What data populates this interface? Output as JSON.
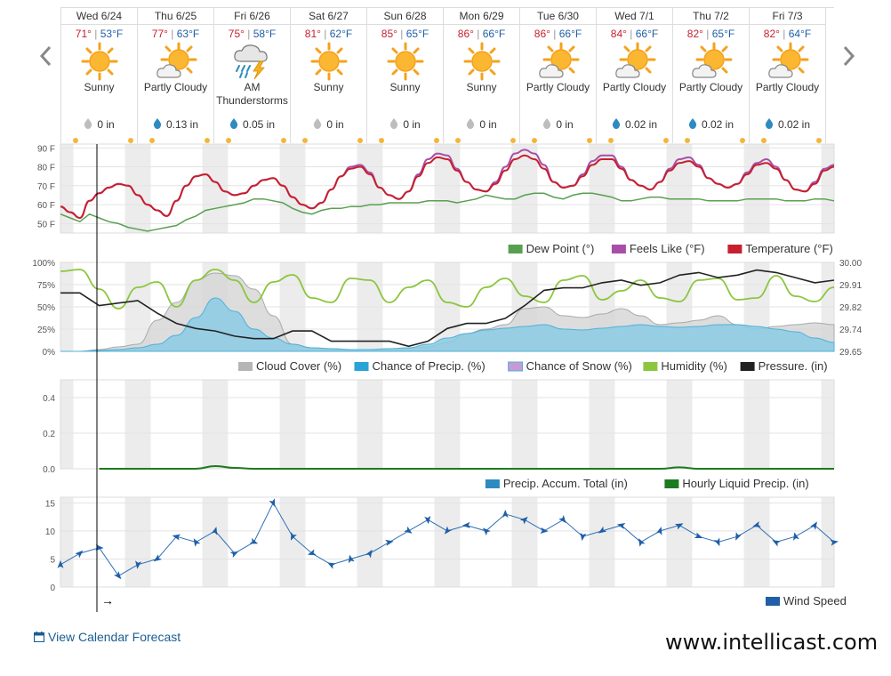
{
  "nav": {
    "prev_icon": "chevron-left-icon",
    "next_icon": "chevron-right-icon"
  },
  "days": [
    {
      "name": "Wed 6/24",
      "hi": "71°",
      "lo": "53°F",
      "icon": "sunny",
      "condition": "Sunny",
      "precip": "0 in",
      "drop": "grey"
    },
    {
      "name": "Thu 6/25",
      "hi": "77°",
      "lo": "63°F",
      "icon": "partly-cloudy",
      "condition": "Partly Cloudy",
      "precip": "0.13 in",
      "drop": "blue"
    },
    {
      "name": "Fri 6/26",
      "hi": "75°",
      "lo": "58°F",
      "icon": "thunderstorm",
      "condition": "AM Thunderstorms",
      "precip": "0.05 in",
      "drop": "blue"
    },
    {
      "name": "Sat 6/27",
      "hi": "81°",
      "lo": "62°F",
      "icon": "sunny",
      "condition": "Sunny",
      "precip": "0 in",
      "drop": "grey"
    },
    {
      "name": "Sun 6/28",
      "hi": "85°",
      "lo": "65°F",
      "icon": "sunny",
      "condition": "Sunny",
      "precip": "0 in",
      "drop": "grey"
    },
    {
      "name": "Mon 6/29",
      "hi": "86°",
      "lo": "66°F",
      "icon": "sunny",
      "condition": "Sunny",
      "precip": "0 in",
      "drop": "grey"
    },
    {
      "name": "Tue 6/30",
      "hi": "86°",
      "lo": "66°F",
      "icon": "partly-cloudy",
      "condition": "Partly Cloudy",
      "precip": "0 in",
      "drop": "grey"
    },
    {
      "name": "Wed 7/1",
      "hi": "84°",
      "lo": "66°F",
      "icon": "partly-cloudy",
      "condition": "Partly Cloudy",
      "precip": "0.02 in",
      "drop": "blue"
    },
    {
      "name": "Thu 7/2",
      "hi": "82°",
      "lo": "65°F",
      "icon": "partly-cloudy",
      "condition": "Partly Cloudy",
      "precip": "0.02 in",
      "drop": "blue"
    },
    {
      "name": "Fri 7/3",
      "hi": "82°",
      "lo": "64°F",
      "icon": "partly-cloudy",
      "condition": "Partly Cloudy",
      "precip": "0.02 in",
      "drop": "blue"
    }
  ],
  "colors": {
    "temperature": "#c6202e",
    "feels_like": "#a84ea8",
    "dew_point": "#58a050",
    "cloud": "#c8c8c8",
    "precip_chance": "#4fb1d8",
    "snow": "#c79ad6",
    "humidity": "#8cc63e",
    "pressure": "#222222",
    "accum": "#2e8bc0",
    "hourly_precip": "#1e7a1e",
    "wind": "#1f5fa8",
    "night_band": "#ececec",
    "grid": "#e3e3e3"
  },
  "chart_data": [
    {
      "type": "line",
      "panel": "temperature",
      "y_ticks": [
        "90 F",
        "80 F",
        "70 F",
        "60 F",
        "50 F"
      ],
      "ylim": [
        45,
        92
      ],
      "x": [
        0,
        3,
        6,
        9,
        12,
        15,
        18,
        21,
        24,
        27,
        30,
        33,
        36,
        39,
        42,
        45,
        48,
        51,
        54,
        57,
        60,
        63,
        66,
        69,
        72,
        75,
        78,
        81,
        84,
        87,
        90,
        93,
        96,
        99,
        102,
        105,
        108,
        111,
        114,
        117,
        120,
        123,
        126,
        129,
        132,
        135,
        138,
        141,
        144,
        147,
        150,
        153,
        156,
        159,
        162,
        165,
        168,
        171,
        174,
        177,
        180,
        183,
        186,
        189,
        192,
        195,
        198,
        201,
        204,
        207,
        210,
        213,
        216,
        219,
        222,
        225,
        228,
        231,
        234,
        237,
        240
      ],
      "series": [
        {
          "name": "Temperature (°F)",
          "values": [
            59,
            56,
            53,
            62,
            66,
            69,
            71,
            70,
            65,
            60,
            57,
            54,
            62,
            70,
            75,
            76,
            72,
            67,
            65,
            66,
            70,
            73,
            74,
            70,
            64,
            60,
            58,
            61,
            68,
            75,
            79,
            80,
            76,
            69,
            65,
            63,
            67,
            75,
            82,
            85,
            84,
            78,
            72,
            68,
            67,
            71,
            78,
            84,
            86,
            84,
            79,
            72,
            69,
            70,
            75,
            81,
            84,
            84,
            79,
            73,
            70,
            68,
            72,
            78,
            82,
            83,
            80,
            74,
            71,
            69,
            71,
            76,
            81,
            82,
            79,
            73,
            68,
            67,
            71,
            78,
            80
          ]
        },
        {
          "name": "Feels Like (°F)",
          "values": [
            59,
            56,
            53,
            62,
            66,
            69,
            71,
            70,
            65,
            60,
            57,
            54,
            62,
            70,
            75,
            76,
            72,
            67,
            65,
            66,
            70,
            73,
            74,
            70,
            64,
            60,
            58,
            61,
            68,
            75,
            80,
            81,
            77,
            69,
            65,
            63,
            67,
            76,
            84,
            87,
            86,
            79,
            72,
            68,
            67,
            72,
            80,
            87,
            89,
            87,
            81,
            72,
            69,
            70,
            76,
            83,
            86,
            86,
            80,
            73,
            70,
            68,
            72,
            79,
            84,
            85,
            81,
            74,
            71,
            69,
            71,
            77,
            82,
            84,
            80,
            73,
            68,
            67,
            72,
            79,
            81
          ]
        },
        {
          "name": "Dew Point (°)",
          "values": [
            55,
            53,
            51,
            55,
            53,
            51,
            50,
            48,
            47,
            46,
            47,
            48,
            49,
            52,
            54,
            57,
            58,
            59,
            60,
            61,
            63,
            63,
            62,
            61,
            58,
            56,
            55,
            57,
            58,
            58,
            59,
            59,
            60,
            60,
            61,
            61,
            61,
            61,
            62,
            62,
            62,
            61,
            62,
            63,
            65,
            64,
            63,
            63,
            65,
            66,
            66,
            64,
            63,
            65,
            66,
            66,
            65,
            64,
            62,
            62,
            63,
            64,
            64,
            63,
            63,
            63,
            63,
            62,
            62,
            62,
            62,
            63,
            63,
            63,
            63,
            62,
            62,
            62,
            63,
            63,
            62
          ]
        }
      ],
      "legend": [
        "Dew Point (°)",
        "Feels Like (°F)",
        "Temperature (°F)"
      ]
    },
    {
      "type": "area",
      "panel": "clouds-precip-humidity-pressure",
      "y_ticks_left": [
        "100%",
        "75%",
        "50%",
        "25%",
        "0%"
      ],
      "y_ticks_right": [
        "30.00",
        "29.91",
        "29.82",
        "29.74",
        "29.65"
      ],
      "ylim_left": [
        0,
        100
      ],
      "ylim_right": [
        29.65,
        30.0
      ],
      "x": [
        0,
        6,
        12,
        18,
        24,
        30,
        36,
        42,
        48,
        54,
        60,
        66,
        72,
        78,
        84,
        90,
        96,
        102,
        108,
        114,
        120,
        126,
        132,
        138,
        144,
        150,
        156,
        162,
        168,
        174,
        180,
        186,
        192,
        198,
        204,
        210,
        216,
        222,
        228,
        234,
        240
      ],
      "series": [
        {
          "name": "Cloud Cover (%)",
          "values": [
            0,
            0,
            2,
            5,
            8,
            35,
            55,
            80,
            88,
            85,
            70,
            40,
            8,
            4,
            3,
            2,
            2,
            3,
            3,
            5,
            10,
            20,
            25,
            30,
            48,
            50,
            40,
            38,
            42,
            48,
            40,
            30,
            32,
            35,
            40,
            30,
            25,
            28,
            30,
            32,
            30
          ]
        },
        {
          "name": "Chance of Precip. (%)",
          "values": [
            0,
            0,
            1,
            2,
            4,
            8,
            18,
            38,
            60,
            45,
            25,
            15,
            8,
            4,
            3,
            2,
            2,
            3,
            4,
            8,
            15,
            20,
            24,
            26,
            28,
            30,
            25,
            24,
            26,
            28,
            30,
            28,
            27,
            28,
            30,
            30,
            28,
            25,
            22,
            15,
            10
          ]
        },
        {
          "name": "Chance of Snow (%)",
          "values": [
            0,
            0,
            0,
            0,
            0,
            0,
            0,
            0,
            0,
            0,
            0,
            0,
            0,
            0,
            0,
            0,
            0,
            0,
            0,
            0,
            0,
            0,
            0,
            0,
            0,
            0,
            0,
            0,
            0,
            0,
            0,
            0,
            0,
            0,
            0,
            0,
            0,
            0,
            0,
            0,
            0
          ]
        },
        {
          "name": "Humidity (%)",
          "values": [
            90,
            92,
            70,
            48,
            72,
            78,
            50,
            80,
            92,
            80,
            55,
            78,
            86,
            60,
            55,
            82,
            80,
            55,
            72,
            80,
            55,
            50,
            72,
            82,
            62,
            55,
            80,
            85,
            58,
            68,
            80,
            60,
            56,
            80,
            82,
            58,
            60,
            85,
            62,
            56,
            72
          ]
        },
        {
          "name": "Pressure. (in)",
          "values": [
            29.88,
            29.88,
            29.83,
            29.84,
            29.85,
            29.8,
            29.76,
            29.74,
            29.73,
            29.71,
            29.7,
            29.7,
            29.73,
            29.73,
            29.69,
            29.69,
            29.69,
            29.69,
            29.67,
            29.69,
            29.74,
            29.76,
            29.76,
            29.78,
            29.83,
            29.89,
            29.9,
            29.9,
            29.92,
            29.93,
            29.91,
            29.92,
            29.95,
            29.96,
            29.94,
            29.95,
            29.97,
            29.96,
            29.94,
            29.92,
            29.93
          ]
        }
      ],
      "legend": [
        "Cloud Cover (%)",
        "Chance of Precip. (%)",
        "Chance of Snow (%)",
        "Humidity (%)",
        "Pressure. (in)"
      ]
    },
    {
      "type": "line",
      "panel": "precip-accumulation",
      "y_ticks": [
        "0.4",
        "0.2",
        "0.0"
      ],
      "ylim": [
        0,
        0.5
      ],
      "x": [
        0,
        6,
        12,
        18,
        24,
        30,
        36,
        42,
        48,
        54,
        60,
        66,
        72,
        78,
        84,
        90,
        96,
        102,
        108,
        114,
        120,
        126,
        132,
        138,
        144,
        150,
        156,
        162,
        168,
        174,
        180,
        186,
        192,
        198,
        204,
        210,
        216,
        222,
        228,
        234,
        240
      ],
      "series": [
        {
          "name": "Precip. Accum. Total (in)",
          "values": [
            0,
            0,
            0,
            0,
            0,
            0,
            0,
            0,
            0,
            0,
            0,
            0,
            0,
            0,
            0,
            0,
            0,
            0,
            0,
            0,
            0,
            0,
            0,
            0,
            0,
            0,
            0,
            0,
            0,
            0,
            0,
            0,
            0,
            0,
            0,
            0,
            0,
            0,
            0,
            0,
            0
          ]
        },
        {
          "name": "Hourly Liquid Precip. (in)",
          "values": [
            0,
            0,
            0,
            0,
            0,
            0,
            0,
            0,
            0.015,
            0.005,
            0,
            0,
            0,
            0,
            0,
            0,
            0,
            0,
            0,
            0,
            0,
            0,
            0,
            0,
            0,
            0,
            0,
            0,
            0,
            0,
            0,
            0,
            0.008,
            0,
            0,
            0,
            0,
            0,
            0,
            0,
            0
          ]
        }
      ],
      "legend": [
        "Precip. Accum. Total (in)",
        "Hourly Liquid Precip. (in)"
      ]
    },
    {
      "type": "line",
      "panel": "wind",
      "y_ticks": [
        "15",
        "10",
        "5",
        "0"
      ],
      "ylim": [
        0,
        16
      ],
      "x": [
        0,
        6,
        12,
        18,
        24,
        30,
        36,
        42,
        48,
        54,
        60,
        66,
        72,
        78,
        84,
        90,
        96,
        102,
        108,
        114,
        120,
        126,
        132,
        138,
        144,
        150,
        156,
        162,
        168,
        174,
        180,
        186,
        192,
        198,
        204,
        210,
        216,
        222,
        228,
        234,
        240
      ],
      "series": [
        {
          "name": "Wind Speed",
          "values": [
            4,
            6,
            7,
            2,
            4,
            5,
            9,
            8,
            10,
            6,
            8,
            15,
            9,
            6,
            4,
            5,
            6,
            8,
            10,
            12,
            10,
            11,
            10,
            13,
            12,
            10,
            12,
            9,
            10,
            11,
            8,
            10,
            11,
            9,
            8,
            9,
            11,
            8,
            9,
            11,
            8
          ]
        }
      ],
      "legend": [
        "Wind Speed"
      ]
    }
  ],
  "current_marker_arrow": "→",
  "footer": {
    "calendar_link": "View Calendar Forecast",
    "calendar_icon": "calendar-icon",
    "brand": "www.intellicast.com"
  }
}
